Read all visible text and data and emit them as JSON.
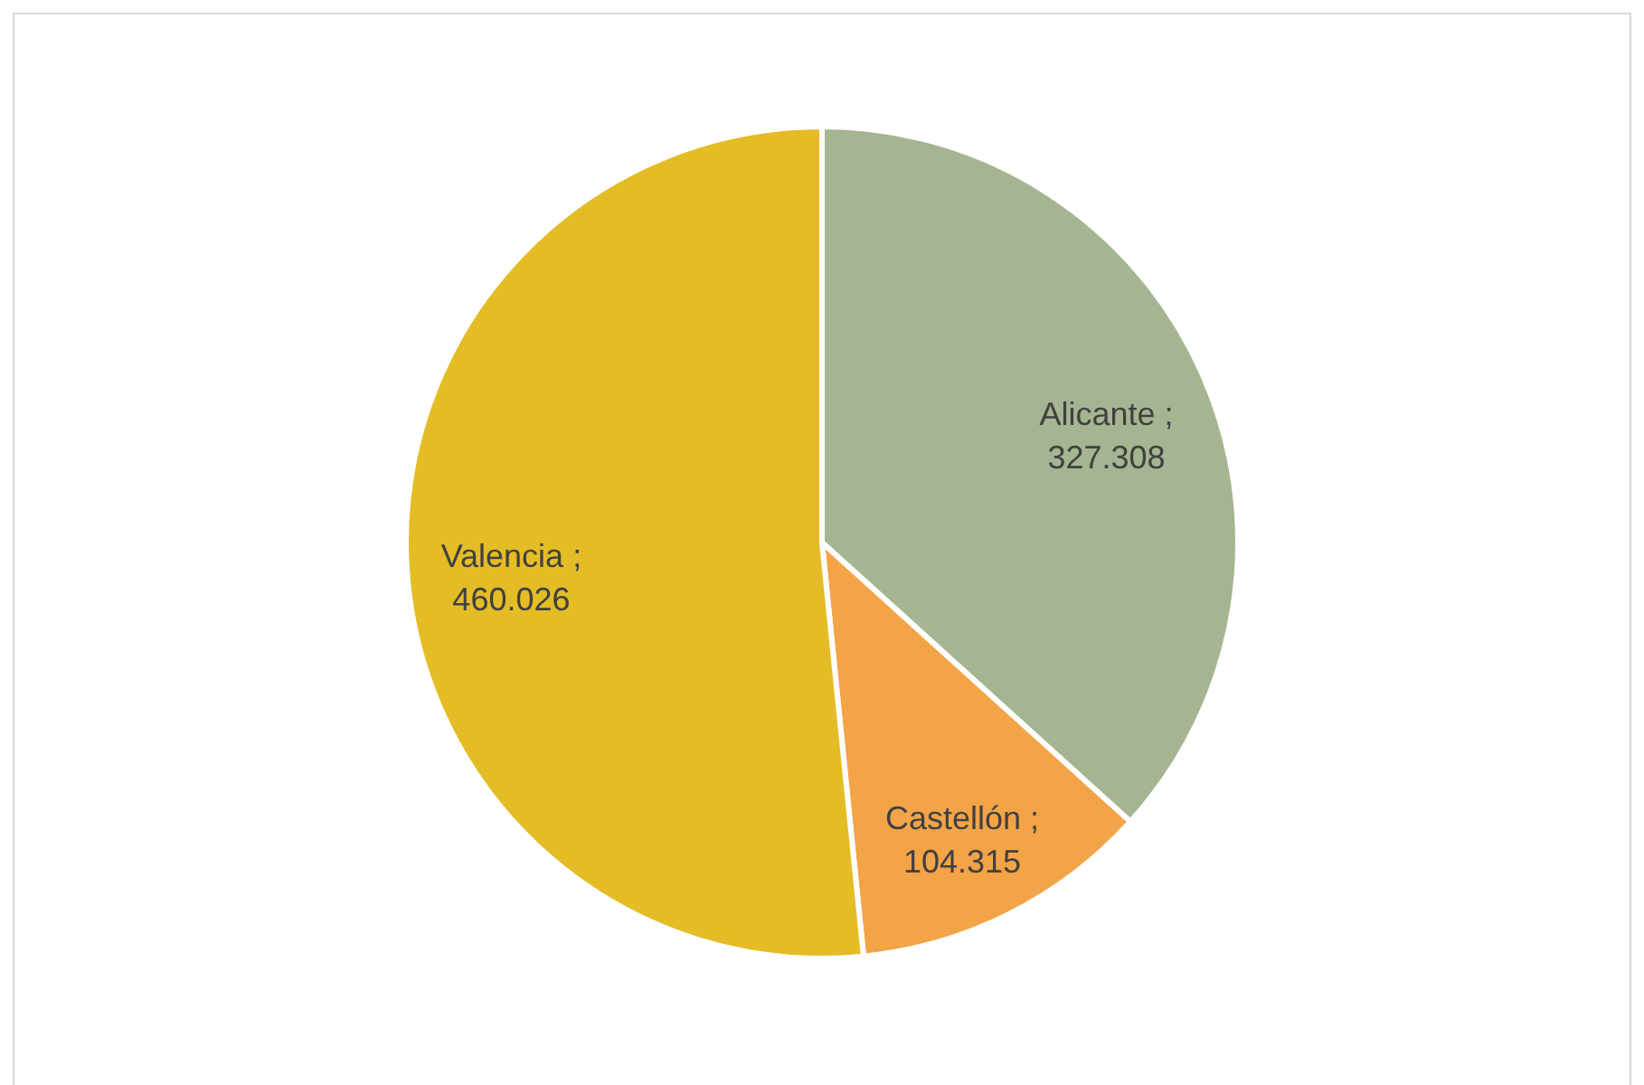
{
  "chart_data": {
    "type": "pie",
    "categories": [
      "Alicante",
      "Castellón",
      "Valencia"
    ],
    "values": [
      327308,
      104315,
      460026
    ],
    "colors": [
      "#a5b592",
      "#f3a447",
      "#e4bc26"
    ],
    "value_labels": [
      "; 327.308",
      "; 104.315",
      "; 460.026"
    ]
  }
}
